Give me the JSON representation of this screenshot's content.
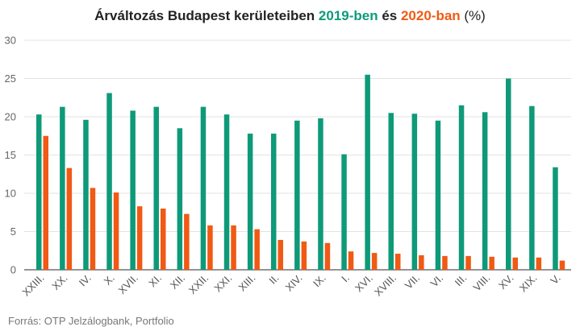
{
  "title": {
    "part1": "Árváltozás Budapest kerületeiben ",
    "part2": "2019-ben",
    "part3": " és ",
    "part4": "2020-ban",
    "part5": " (%)"
  },
  "source": "Forrás: OTP Jelzálogbank, Portfolio",
  "colors": {
    "series_2019": "#0e9a79",
    "series_2020": "#f05a14",
    "grid": "#e3e3e3",
    "axis": "#555555"
  },
  "chart_data": {
    "type": "bar",
    "categories": [
      "XXIII.",
      "XX.",
      "IV.",
      "X.",
      "XVII.",
      "XI.",
      "XII.",
      "XXII.",
      "XXI.",
      "XIII.",
      "II.",
      "XIV.",
      "IX.",
      "I.",
      "XVI.",
      "XVIII.",
      "VII.",
      "VI.",
      "III.",
      "VIII.",
      "XV.",
      "XIX.",
      "V."
    ],
    "series": [
      {
        "values": [
          20.3,
          21.3,
          19.6,
          23.1,
          20.8,
          21.3,
          18.5,
          21.3,
          20.3,
          17.8,
          17.8,
          19.5,
          19.8,
          15.1,
          25.5,
          20.5,
          20.4,
          19.5,
          21.5,
          20.6,
          25.0,
          21.4,
          13.4
        ]
      },
      {
        "values": [
          17.5,
          13.3,
          10.7,
          10.1,
          8.3,
          8.0,
          7.3,
          5.8,
          5.8,
          5.3,
          3.9,
          3.7,
          3.5,
          2.4,
          2.2,
          2.1,
          1.9,
          1.8,
          1.8,
          1.7,
          1.6,
          1.6,
          1.2
        ]
      }
    ],
    "ylim": [
      0,
      30
    ],
    "yticks": [
      0,
      5,
      10,
      15,
      20,
      25,
      30
    ],
    "grid": true,
    "legend": "none"
  }
}
